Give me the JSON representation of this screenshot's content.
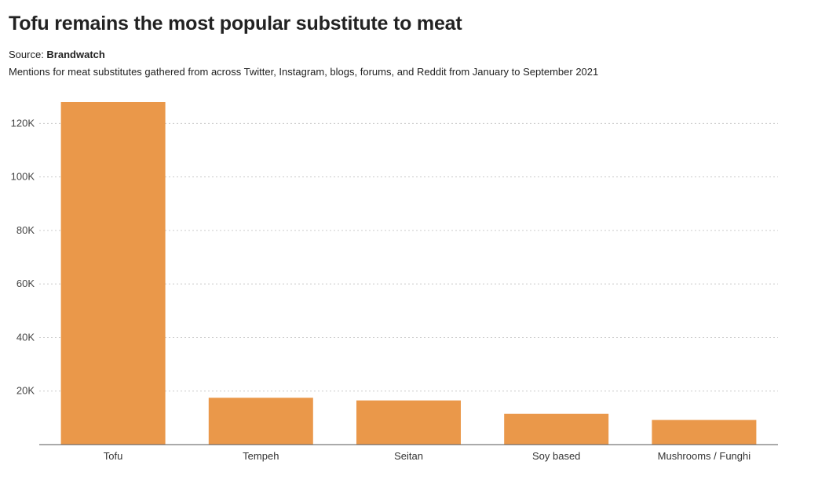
{
  "header": {
    "title": "Tofu remains the most popular substitute to meat",
    "source_prefix": "Source: ",
    "source_name": "Brandwatch",
    "subtitle": "Mentions for meat substitutes gathered from across Twitter, Instagram, blogs, forums, and Reddit from January to September 2021"
  },
  "colors": {
    "bar": "#EA984A",
    "grid": "#cccccc",
    "axis": "#555555"
  },
  "chart_data": {
    "type": "bar",
    "title": "Tofu remains the most popular substitute to meat",
    "xlabel": "",
    "ylabel": "",
    "categories": [
      "Tofu",
      "Tempeh",
      "Seitan",
      "Soy based",
      "Mushrooms / Funghi"
    ],
    "values": [
      128000,
      17500,
      16500,
      11500,
      9200
    ],
    "ylim": [
      0,
      128000
    ],
    "yticks": [
      20000,
      40000,
      60000,
      80000,
      100000,
      120000
    ],
    "ytick_labels": [
      "20K",
      "40K",
      "60K",
      "80K",
      "100K",
      "120K"
    ],
    "grid": true,
    "legend": "none"
  }
}
